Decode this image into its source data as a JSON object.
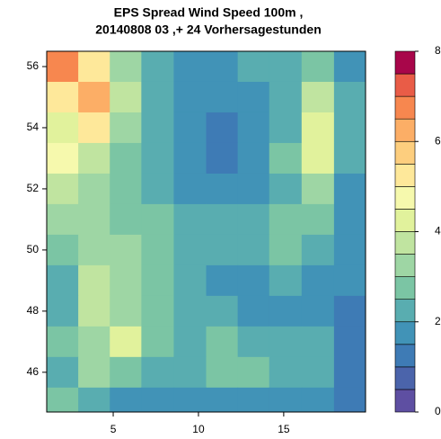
{
  "chart_data": {
    "type": "heatmap",
    "title": "EPS Spread Wind Speed 100m ,",
    "subtitle": "20140808 03 ,+ 24 Vorhersagestunden",
    "x": [
      2.0,
      3.9,
      5.7,
      7.6,
      9.5,
      11.4,
      13.2,
      15.1,
      17.0,
      18.9
    ],
    "y": [
      56,
      55,
      54,
      53,
      52,
      51,
      50,
      49,
      48,
      47,
      46,
      45
    ],
    "values": [
      [
        6.5,
        5,
        3,
        2,
        1.5,
        1.5,
        2,
        2,
        2.5,
        1.5
      ],
      [
        5,
        6,
        3.5,
        2,
        1.5,
        1.5,
        1.5,
        2,
        3.5,
        2
      ],
      [
        4,
        5,
        3,
        2,
        1.5,
        1,
        1.5,
        2,
        4,
        2
      ],
      [
        4.5,
        3.5,
        2.5,
        2,
        1.5,
        1,
        1.5,
        2.5,
        4,
        2
      ],
      [
        3.5,
        3,
        2.5,
        2,
        1.5,
        1.5,
        1.5,
        2,
        3,
        1.5
      ],
      [
        3,
        3,
        2.5,
        2.5,
        2,
        2,
        2,
        2.5,
        2.5,
        1.5
      ],
      [
        2.5,
        3,
        3,
        2.5,
        2,
        2,
        2,
        2.5,
        2,
        1.5
      ],
      [
        2,
        3.5,
        3,
        2.5,
        2,
        1.5,
        1.5,
        2,
        1.5,
        1.5
      ],
      [
        2,
        3.5,
        3,
        2.5,
        2,
        2,
        1.5,
        1.5,
        1.5,
        1
      ],
      [
        2.5,
        3,
        4,
        2.5,
        2,
        2.5,
        2,
        2,
        2,
        1
      ],
      [
        2,
        3,
        2.5,
        2,
        2,
        2.5,
        2.5,
        2,
        2,
        1
      ],
      [
        2.5,
        2,
        1.5,
        1.5,
        1.5,
        1.5,
        1.5,
        1.5,
        1.5,
        1
      ]
    ],
    "xlim": [
      1.1,
      19.8
    ],
    "ylim": [
      44.7,
      56.5
    ],
    "xticks": [
      5,
      10,
      15
    ],
    "yticks": [
      46,
      48,
      50,
      52,
      54,
      56
    ],
    "levels": [
      0,
      0.5,
      1,
      1.5,
      2,
      2.5,
      3,
      3.5,
      4,
      4.5,
      5,
      5.5,
      6,
      6.5,
      7,
      7.5,
      8
    ],
    "colors": [
      "#5e4fa2",
      "#4b64ab",
      "#3e7bb5",
      "#4193b7",
      "#59adb0",
      "#7bc5a4",
      "#9ed6a4",
      "#c0e4a0",
      "#e1f29c",
      "#f6f9ad",
      "#fee89a",
      "#fdce7e",
      "#fcae66",
      "#f7874f",
      "#e95c47",
      "#a8064a"
    ],
    "colorbar_lim": [
      0,
      8
    ],
    "colorbar_ticks": [
      0,
      2,
      4,
      6,
      8
    ]
  }
}
